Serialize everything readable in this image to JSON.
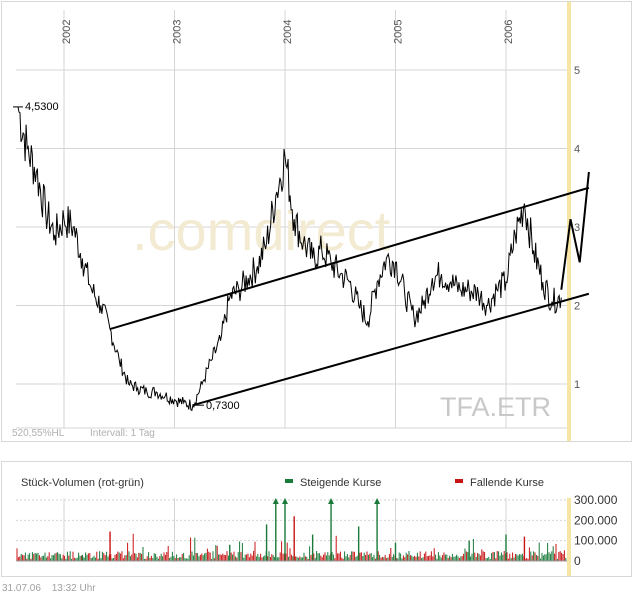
{
  "chart_data": [
    {
      "type": "line",
      "ticker": "TFA.ETR",
      "watermark": ".comdirect",
      "x_ticks": [
        "2002",
        "2003",
        "2004",
        "2005",
        "2006"
      ],
      "y_ticks": [
        1,
        2,
        3,
        4,
        5
      ],
      "ylim": [
        0,
        5.7
      ],
      "max_label": "4,5300",
      "min_label": "0,7300",
      "range_label": "520,55%HL",
      "interval_label": "Intervall: 1 Tag",
      "series": [
        {
          "x": [
            "2001-08",
            "2001-09",
            "2001-10",
            "2001-11",
            "2001-12",
            "2002-01",
            "2002-02",
            "2002-03",
            "2002-04",
            "2002-05",
            "2002-06",
            "2002-07",
            "2002-08",
            "2002-09",
            "2002-10",
            "2002-11",
            "2002-12",
            "2003-01",
            "2003-02",
            "2003-03",
            "2003-04",
            "2003-05",
            "2003-06",
            "2003-07",
            "2003-08",
            "2003-09",
            "2003-10",
            "2003-11",
            "2003-12",
            "2004-01",
            "2004-02",
            "2004-03",
            "2004-04",
            "2004-05",
            "2004-06",
            "2004-07",
            "2004-08",
            "2004-09",
            "2004-10",
            "2004-11",
            "2004-12",
            "2005-01",
            "2005-02",
            "2005-03",
            "2005-04",
            "2005-05",
            "2005-06",
            "2005-07",
            "2005-08",
            "2005-09",
            "2005-10",
            "2005-11",
            "2005-12",
            "2006-01",
            "2006-02",
            "2006-03",
            "2006-04",
            "2006-05",
            "2006-06",
            "2006-07"
          ],
          "values": [
            4.53,
            4.0,
            3.7,
            3.2,
            2.9,
            3.1,
            3.0,
            2.6,
            2.2,
            2.0,
            1.7,
            1.3,
            1.0,
            0.95,
            0.9,
            0.9,
            0.85,
            0.8,
            0.76,
            0.73,
            1.0,
            1.3,
            1.55,
            2.1,
            2.2,
            2.35,
            2.5,
            2.8,
            3.4,
            3.9,
            3.1,
            2.8,
            2.6,
            2.7,
            2.55,
            2.4,
            2.3,
            2.0,
            1.8,
            2.3,
            2.6,
            2.55,
            2.15,
            1.85,
            2.0,
            2.35,
            2.4,
            2.3,
            2.2,
            2.2,
            2.15,
            2.0,
            2.2,
            2.3,
            2.9,
            3.3,
            2.7,
            2.3,
            2.05,
            2.1
          ]
        }
      ],
      "forecast": {
        "x": [
          "2006-07",
          "2006-08",
          "2006-09",
          "2006-10"
        ],
        "values": [
          2.2,
          3.1,
          2.55,
          3.7
        ]
      },
      "trend_channel": {
        "upper": {
          "x": [
            "2002-06",
            "2006-10"
          ],
          "values": [
            1.7,
            3.5
          ]
        },
        "lower": {
          "x": [
            "2003-03",
            "2006-10"
          ],
          "values": [
            0.73,
            2.15
          ]
        }
      }
    },
    {
      "type": "bar",
      "title": "Stück-Volumen (rot-grün)",
      "legend_rising": "Steigende Kurse",
      "legend_falling": "Fallende Kurse",
      "rising_color": "#1a7a3a",
      "falling_color": "#c81414",
      "y_ticks": [
        "300.000",
        "200.000",
        "100.000",
        "0"
      ],
      "y_tick_values": [
        300000,
        200000,
        100000,
        0
      ],
      "ylim": [
        0,
        330000
      ],
      "spikes": [
        {
          "x": "2002-03",
          "value": 30000,
          "dir": "up"
        },
        {
          "x": "2002-06",
          "value": 145000,
          "dir": "down"
        },
        {
          "x": "2003-07",
          "value": 80000,
          "dir": "up"
        },
        {
          "x": "2003-11",
          "value": 180000,
          "dir": "up"
        },
        {
          "x": "2003-12",
          "value": 300000,
          "dir": "up"
        },
        {
          "x": "2004-01",
          "value": 300000,
          "dir": "up"
        },
        {
          "x": "2004-02",
          "value": 220000,
          "dir": "down"
        },
        {
          "x": "2004-04",
          "value": 130000,
          "dir": "up"
        },
        {
          "x": "2004-06",
          "value": 300000,
          "dir": "up"
        },
        {
          "x": "2004-09",
          "value": 170000,
          "dir": "up"
        },
        {
          "x": "2004-11",
          "value": 300000,
          "dir": "up"
        },
        {
          "x": "2005-01",
          "value": 90000,
          "dir": "up"
        },
        {
          "x": "2005-09",
          "value": 100000,
          "dir": "up"
        },
        {
          "x": "2006-01",
          "value": 130000,
          "dir": "up"
        },
        {
          "x": "2006-03",
          "value": 120000,
          "dir": "down"
        }
      ]
    }
  ],
  "footer": {
    "date": "31.07.06",
    "time": "13:32 Uhr"
  },
  "colors": {
    "price_line": "#000000",
    "grid": "#d5d5d5",
    "highlight": "#f7e6a3",
    "axis_text": "#555555"
  }
}
